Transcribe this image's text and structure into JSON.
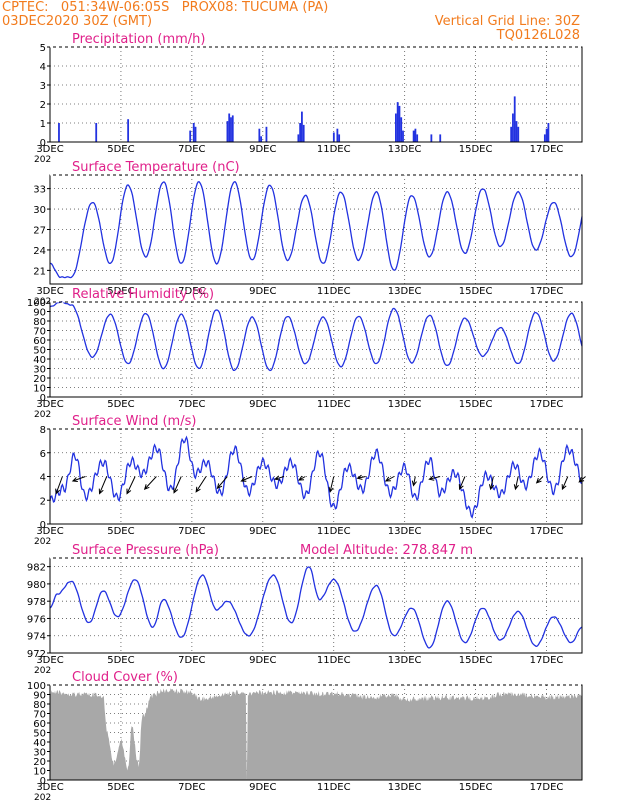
{
  "header": {
    "line1": "CPTEC:   051:34W-06:05S   PROX08: TUCUMA (PA)",
    "line2": "03DEC2020 30Z (GMT)",
    "grid_note": "Vertical Grid Line: 30Z",
    "run_code": "TQ0126L028"
  },
  "colors": {
    "header": "#f27b1d",
    "title": "#e0208a",
    "series": "#2232e0",
    "cloud": "#a8a8a8",
    "arrow": "#000000"
  },
  "x_axis": {
    "start": "03DEC",
    "end": "18DEC",
    "ticks": [
      {
        "day": 3,
        "label": "3DEC"
      },
      {
        "day": 5,
        "label": "5DEC"
      },
      {
        "day": 7,
        "label": "7DEC"
      },
      {
        "day": 9,
        "label": "9DEC"
      },
      {
        "day": 11,
        "label": "11DEC"
      },
      {
        "day": 13,
        "label": "13DEC"
      },
      {
        "day": 15,
        "label": "15DEC"
      },
      {
        "day": 17,
        "label": "17DEC"
      }
    ],
    "year_fragment": "202"
  },
  "chart_data": [
    {
      "id": "precip",
      "type": "bar",
      "title": "Precipitation (mm/h)",
      "ylim": [
        0,
        5
      ],
      "yticks": [
        0,
        1,
        2,
        3,
        4,
        5
      ],
      "x_unit": "day of December 2020",
      "points": [
        [
          3.25,
          1.0
        ],
        [
          4.3,
          1.0
        ],
        [
          5.2,
          1.2
        ],
        [
          6.95,
          0.6
        ],
        [
          7.05,
          1.0
        ],
        [
          7.1,
          0.8
        ],
        [
          8.0,
          1.1
        ],
        [
          8.05,
          1.5
        ],
        [
          8.1,
          1.3
        ],
        [
          8.15,
          1.4
        ],
        [
          8.9,
          0.7
        ],
        [
          8.95,
          0.3
        ],
        [
          9.1,
          0.8
        ],
        [
          10.0,
          0.4
        ],
        [
          10.05,
          1.0
        ],
        [
          10.1,
          1.6
        ],
        [
          10.15,
          0.9
        ],
        [
          11.0,
          0.5
        ],
        [
          11.1,
          0.7
        ],
        [
          11.15,
          0.4
        ],
        [
          12.75,
          1.5
        ],
        [
          12.8,
          2.1
        ],
        [
          12.85,
          1.9
        ],
        [
          12.9,
          1.3
        ],
        [
          12.95,
          0.6
        ],
        [
          13.25,
          0.6
        ],
        [
          13.3,
          0.7
        ],
        [
          13.35,
          0.4
        ],
        [
          13.75,
          0.4
        ],
        [
          14.0,
          0.4
        ],
        [
          16.0,
          0.8
        ],
        [
          16.05,
          1.5
        ],
        [
          16.1,
          2.4
        ],
        [
          16.15,
          1.1
        ],
        [
          16.2,
          0.8
        ],
        [
          16.95,
          0.4
        ],
        [
          17.0,
          0.7
        ],
        [
          17.05,
          1.0
        ]
      ]
    },
    {
      "id": "temp",
      "type": "line",
      "title": "Surface Temperature (nC)",
      "ylim": [
        19,
        35
      ],
      "yticks": [
        21,
        24,
        27,
        30,
        33
      ],
      "min_max": [
        [
          3.0,
          22.0
        ],
        [
          3.3,
          20.0
        ],
        [
          3.6,
          20.0
        ],
        [
          4.2,
          31.0
        ],
        [
          4.7,
          22.0
        ],
        [
          5.2,
          33.5
        ],
        [
          5.7,
          23.0
        ],
        [
          6.2,
          34.0
        ],
        [
          6.7,
          22.0
        ],
        [
          7.2,
          34.0
        ],
        [
          7.7,
          22.0
        ],
        [
          8.2,
          34.0
        ],
        [
          8.7,
          22.5
        ],
        [
          9.2,
          33.5
        ],
        [
          9.7,
          22.5
        ],
        [
          10.2,
          32.0
        ],
        [
          10.7,
          22.0
        ],
        [
          11.2,
          32.5
        ],
        [
          11.7,
          22.5
        ],
        [
          12.2,
          32.5
        ],
        [
          12.7,
          21.0
        ],
        [
          13.2,
          32.0
        ],
        [
          13.7,
          23.0
        ],
        [
          14.2,
          32.5
        ],
        [
          14.7,
          23.5
        ],
        [
          15.2,
          33.0
        ],
        [
          15.7,
          24.5
        ],
        [
          16.2,
          32.5
        ],
        [
          16.7,
          24.0
        ],
        [
          17.2,
          31.0
        ],
        [
          17.7,
          23.0
        ],
        [
          18.2,
          32.0
        ]
      ]
    },
    {
      "id": "rh",
      "type": "line",
      "title": "Relative Humidity (%)",
      "ylim": [
        0,
        100
      ],
      "yticks": [
        0,
        10,
        20,
        30,
        40,
        50,
        60,
        70,
        80,
        90,
        100
      ],
      "min_max": [
        [
          3.0,
          95.0
        ],
        [
          3.3,
          100.0
        ],
        [
          3.6,
          97.0
        ],
        [
          4.2,
          42.0
        ],
        [
          4.7,
          87.0
        ],
        [
          5.2,
          35.0
        ],
        [
          5.7,
          88.0
        ],
        [
          6.2,
          30.0
        ],
        [
          6.7,
          87.0
        ],
        [
          7.2,
          30.0
        ],
        [
          7.7,
          92.0
        ],
        [
          8.2,
          28.0
        ],
        [
          8.7,
          84.0
        ],
        [
          9.2,
          28.0
        ],
        [
          9.7,
          85.0
        ],
        [
          10.2,
          35.0
        ],
        [
          10.7,
          84.0
        ],
        [
          11.2,
          32.0
        ],
        [
          11.7,
          85.0
        ],
        [
          12.2,
          35.0
        ],
        [
          12.7,
          93.0
        ],
        [
          13.2,
          36.0
        ],
        [
          13.7,
          86.0
        ],
        [
          14.2,
          33.0
        ],
        [
          14.7,
          83.0
        ],
        [
          15.2,
          43.0
        ],
        [
          15.7,
          73.0
        ],
        [
          16.2,
          35.0
        ],
        [
          16.7,
          89.0
        ],
        [
          17.2,
          38.0
        ],
        [
          17.7,
          88.0
        ],
        [
          18.2,
          35.0
        ]
      ]
    },
    {
      "id": "wind",
      "type": "line",
      "title": "Surface Wind (m/s)",
      "ylim": [
        0,
        8
      ],
      "yticks": [
        0,
        2,
        4,
        6,
        8
      ],
      "min_max": [
        [
          3.0,
          2.0
        ],
        [
          3.4,
          3.0
        ],
        [
          3.7,
          5.8
        ],
        [
          4.0,
          2.3
        ],
        [
          4.5,
          5.2
        ],
        [
          4.9,
          2.2
        ],
        [
          5.3,
          5.3
        ],
        [
          5.6,
          4.2
        ],
        [
          6.0,
          6.4
        ],
        [
          6.4,
          2.9
        ],
        [
          6.8,
          7.2
        ],
        [
          7.1,
          4.2
        ],
        [
          7.4,
          5.2
        ],
        [
          7.8,
          2.6
        ],
        [
          8.2,
          6.3
        ],
        [
          8.6,
          2.7
        ],
        [
          9.0,
          5.2
        ],
        [
          9.4,
          3.3
        ],
        [
          9.8,
          5.2
        ],
        [
          10.2,
          2.4
        ],
        [
          10.6,
          6.0
        ],
        [
          11.0,
          1.4
        ],
        [
          11.4,
          4.8
        ],
        [
          11.8,
          2.9
        ],
        [
          12.2,
          6.0
        ],
        [
          12.6,
          2.6
        ],
        [
          13.0,
          4.8
        ],
        [
          13.3,
          2.2
        ],
        [
          13.7,
          5.4
        ],
        [
          14.0,
          2.6
        ],
        [
          14.4,
          4.3
        ],
        [
          14.9,
          0.9
        ],
        [
          15.3,
          4.1
        ],
        [
          15.7,
          2.5
        ],
        [
          16.1,
          5.0
        ],
        [
          16.4,
          3.2
        ],
        [
          16.8,
          6.0
        ],
        [
          17.2,
          2.8
        ],
        [
          17.6,
          6.3
        ],
        [
          18.2,
          2.5
        ]
      ],
      "vectors": [
        [
          3.35,
          -0.7,
          -1.9
        ],
        [
          4.0,
          -1.4,
          -0.5
        ],
        [
          4.6,
          -0.8,
          -1.9
        ],
        [
          5.4,
          -0.9,
          -1.9
        ],
        [
          6.0,
          -1.3,
          -1.4
        ],
        [
          6.7,
          -0.8,
          -1.8
        ],
        [
          7.4,
          -1.1,
          -1.7
        ],
        [
          8.0,
          -1.1,
          -1.3
        ],
        [
          8.7,
          -1.2,
          -0.5
        ],
        [
          9.6,
          -1.0,
          -0.3
        ],
        [
          10.2,
          -0.7,
          -0.4
        ],
        [
          11.0,
          -0.4,
          -1.7
        ],
        [
          11.9,
          -0.9,
          -0.2
        ],
        [
          12.7,
          -0.9,
          -0.5
        ],
        [
          13.3,
          -0.2,
          -1.0
        ],
        [
          14.0,
          -1.2,
          -0.3
        ],
        [
          14.7,
          -0.6,
          -1.4
        ],
        [
          15.5,
          -0.3,
          -1.4
        ],
        [
          16.2,
          -0.3,
          -1.4
        ],
        [
          16.9,
          -0.7,
          -0.7
        ],
        [
          17.6,
          -0.6,
          -1.4
        ],
        [
          18.1,
          -0.7,
          -0.6
        ]
      ]
    },
    {
      "id": "pres",
      "type": "line",
      "title": "Surface Pressure (hPa)",
      "subtitle": "Model Altitude: 278.847 m",
      "ylim": [
        972,
        983
      ],
      "yticks": [
        972,
        974,
        976,
        978,
        980,
        982
      ],
      "min_max": [
        [
          3.0,
          977.2
        ],
        [
          3.2,
          978.8
        ],
        [
          3.6,
          980.3
        ],
        [
          4.1,
          975.5
        ],
        [
          4.5,
          979.2
        ],
        [
          4.9,
          976.2
        ],
        [
          5.4,
          980.5
        ],
        [
          5.9,
          975.0
        ],
        [
          6.2,
          978.2
        ],
        [
          6.7,
          973.8
        ],
        [
          7.3,
          981.0
        ],
        [
          7.7,
          977.0
        ],
        [
          8.0,
          978.0
        ],
        [
          8.6,
          974.0
        ],
        [
          9.3,
          981.0
        ],
        [
          9.8,
          975.5
        ],
        [
          10.3,
          982.0
        ],
        [
          10.6,
          978.2
        ],
        [
          11.0,
          980.5
        ],
        [
          11.6,
          974.5
        ],
        [
          12.2,
          979.8
        ],
        [
          12.7,
          974.0
        ],
        [
          13.2,
          977.2
        ],
        [
          13.7,
          972.6
        ],
        [
          14.2,
          978.0
        ],
        [
          14.7,
          973.2
        ],
        [
          15.2,
          977.2
        ],
        [
          15.7,
          973.5
        ],
        [
          16.2,
          976.8
        ],
        [
          16.7,
          972.8
        ],
        [
          17.2,
          976.2
        ],
        [
          17.7,
          973.2
        ],
        [
          18.0,
          975.0
        ]
      ]
    },
    {
      "id": "cloud",
      "type": "area",
      "title": "Cloud Cover (%)",
      "ylim": [
        0,
        100
      ],
      "yticks": [
        0,
        10,
        20,
        30,
        40,
        50,
        60,
        70,
        80,
        90,
        100
      ],
      "profile": [
        [
          3.0,
          95.0
        ],
        [
          4.5,
          92.0
        ],
        [
          4.6,
          55.0
        ],
        [
          4.8,
          20.0
        ],
        [
          5.0,
          45.0
        ],
        [
          5.2,
          15.0
        ],
        [
          5.3,
          60.0
        ],
        [
          5.5,
          18.0
        ],
        [
          5.6,
          70.0
        ],
        [
          5.9,
          92.0
        ],
        [
          6.2,
          97.0
        ],
        [
          6.9,
          96.0
        ],
        [
          7.3,
          88.0
        ],
        [
          7.8,
          92.0
        ],
        [
          8.3,
          95.0
        ],
        [
          8.52,
          94.0
        ],
        [
          8.55,
          5.0
        ],
        [
          8.58,
          94.0
        ],
        [
          9.2,
          95.0
        ],
        [
          11.0,
          94.0
        ],
        [
          12.0,
          90.0
        ],
        [
          12.7,
          92.0
        ],
        [
          13.0,
          88.0
        ],
        [
          14.0,
          90.0
        ],
        [
          15.0,
          89.0
        ],
        [
          16.0,
          94.0
        ],
        [
          17.0,
          90.0
        ],
        [
          18.0,
          92.0
        ]
      ]
    }
  ]
}
